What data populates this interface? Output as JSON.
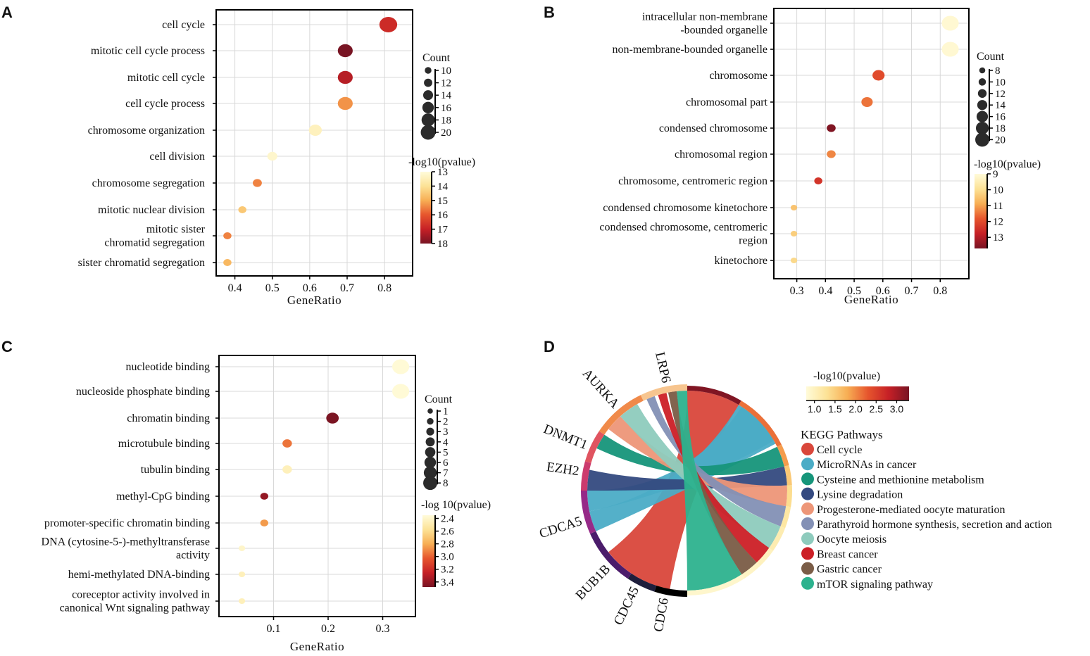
{
  "axis_label_gene_ratio": "GeneRatio",
  "chart_data": [
    {
      "panel": "A",
      "type": "scatter",
      "xlabel": "GeneRatio",
      "xlim": [
        0.35,
        0.875
      ],
      "xticks": [
        0.4,
        0.5,
        0.6,
        0.7,
        0.8
      ],
      "tick_labels": [
        "0.4",
        "0.5",
        "0.6",
        "0.7",
        "0.8"
      ],
      "size_title": "Count",
      "size_legend": [
        10,
        12,
        14,
        16,
        18,
        20
      ],
      "size_range": [
        10,
        20
      ],
      "color_title": "-log10(pvalue)",
      "color_ticks": [
        13,
        14,
        15,
        16,
        17,
        18
      ],
      "color_range": [
        13,
        18
      ],
      "terms": [
        {
          "label": [
            "cell cycle"
          ],
          "x": 0.81,
          "count": 20,
          "p": 16.8
        },
        {
          "label": [
            "mitotic cell cycle process"
          ],
          "x": 0.695,
          "count": 17,
          "p": 18
        },
        {
          "label": [
            "mitotic cell cycle"
          ],
          "x": 0.695,
          "count": 17,
          "p": 17.2
        },
        {
          "label": [
            "cell cycle process"
          ],
          "x": 0.695,
          "count": 17,
          "p": 15.3
        },
        {
          "label": [
            "chromosome organization"
          ],
          "x": 0.615,
          "count": 15,
          "p": 13.4
        },
        {
          "label": [
            "cell division"
          ],
          "x": 0.5,
          "count": 12,
          "p": 13.2
        },
        {
          "label": [
            "chromosome segregation"
          ],
          "x": 0.46,
          "count": 11,
          "p": 15.5
        },
        {
          "label": [
            "mitotic nuclear division"
          ],
          "x": 0.42,
          "count": 10,
          "p": 14.5
        },
        {
          "label": [
            "mitotic sister",
            "chromatid segregation"
          ],
          "x": 0.38,
          "count": 10,
          "p": 15.5
        },
        {
          "label": [
            "sister chromatid segregation"
          ],
          "x": 0.38,
          "count": 10,
          "p": 14.8
        }
      ]
    },
    {
      "panel": "B",
      "type": "scatter",
      "xlabel": "GeneRatio",
      "xlim": [
        0.22,
        0.9
      ],
      "xticks": [
        0.3,
        0.4,
        0.5,
        0.6,
        0.7,
        0.8
      ],
      "tick_labels": [
        "0.3",
        "0.4",
        "0.5",
        "0.6",
        "0.7",
        "0.8"
      ],
      "size_title": "Count",
      "size_legend": [
        8,
        10,
        12,
        14,
        16,
        18,
        20
      ],
      "size_range": [
        8,
        20
      ],
      "color_title": "-log10(pvalue)",
      "color_ticks": [
        9,
        10,
        11,
        12,
        13
      ],
      "color_range": [
        9,
        13.7
      ],
      "terms": [
        {
          "label": [
            "intracellular non-membrane",
            "-bounded organelle"
          ],
          "x": 0.835,
          "count": 20,
          "p": 9.1
        },
        {
          "label": [
            "non-membrane-bounded organelle"
          ],
          "x": 0.835,
          "count": 20,
          "p": 9.1
        },
        {
          "label": [
            "chromosome"
          ],
          "x": 0.585,
          "count": 14,
          "p": 12.0
        },
        {
          "label": [
            "chromosomal part"
          ],
          "x": 0.545,
          "count": 13,
          "p": 11.5
        },
        {
          "label": [
            "condensed chromosome"
          ],
          "x": 0.42,
          "count": 10,
          "p": 13.6
        },
        {
          "label": [
            "chromosomal region"
          ],
          "x": 0.42,
          "count": 10,
          "p": 11.3
        },
        {
          "label": [
            "chromosome, centromeric region"
          ],
          "x": 0.375,
          "count": 9,
          "p": 12.4
        },
        {
          "label": [
            "condensed chromosome kinetochore"
          ],
          "x": 0.29,
          "count": 7,
          "p": 10.5
        },
        {
          "label": [
            "condensed chromosome, centromeric",
            "region"
          ],
          "x": 0.29,
          "count": 7,
          "p": 10.3
        },
        {
          "label": [
            "kinetochore"
          ],
          "x": 0.29,
          "count": 7,
          "p": 10.1
        }
      ]
    },
    {
      "panel": "C",
      "type": "scatter",
      "xlabel": "GeneRatio",
      "xlim": [
        0.0,
        0.36
      ],
      "xticks": [
        0.1,
        0.2,
        0.3
      ],
      "tick_labels": [
        "0.1",
        "0.2",
        "0.3"
      ],
      "size_title": "Count",
      "size_legend": [
        1,
        2,
        3,
        4,
        5,
        6,
        7,
        8
      ],
      "size_range": [
        1,
        8
      ],
      "color_title": "-log 10(pvalue)",
      "color_ticks": [
        2.4,
        2.6,
        2.8,
        3.0,
        3.2,
        3.4
      ],
      "tick_text": [
        "2.4",
        "2.6",
        "2.8",
        "3.0",
        "3.2",
        "3.4"
      ],
      "color_range": [
        2.35,
        3.48
      ],
      "terms": [
        {
          "label": [
            "nucleotide binding"
          ],
          "x": 0.333,
          "count": 8,
          "p": 2.36
        },
        {
          "label": [
            "nucleoside phosphate binding"
          ],
          "x": 0.333,
          "count": 8,
          "p": 2.36
        },
        {
          "label": [
            "chromatin binding"
          ],
          "x": 0.208,
          "count": 5,
          "p": 3.47
        },
        {
          "label": [
            "microtubule binding"
          ],
          "x": 0.125,
          "count": 3,
          "p": 2.95
        },
        {
          "label": [
            "tubulin binding"
          ],
          "x": 0.125,
          "count": 3,
          "p": 2.45
        },
        {
          "label": [
            "methyl-CpG binding"
          ],
          "x": 0.083,
          "count": 2,
          "p": 3.4
        },
        {
          "label": [
            "promoter-specific chromatin binding"
          ],
          "x": 0.083,
          "count": 2,
          "p": 2.85
        },
        {
          "label": [
            "DNA (cytosine-5-)-methyltransferase",
            "activity"
          ],
          "x": 0.042,
          "count": 1,
          "p": 2.4
        },
        {
          "label": [
            "hemi-methylated DNA-binding"
          ],
          "x": 0.042,
          "count": 1,
          "p": 2.45
        },
        {
          "label": [
            "coreceptor activity involved in",
            "canonical Wnt signaling pathway"
          ],
          "x": 0.042,
          "count": 1,
          "p": 2.45
        }
      ]
    },
    {
      "panel": "D",
      "type": "chord",
      "color_title": "-log10(pvalue)",
      "color_ticks": [
        1.0,
        1.5,
        2.0,
        2.5,
        3.0
      ],
      "tick_text": [
        "1.0",
        "1.5",
        "2.0",
        "2.5",
        "3.0"
      ],
      "color_range": [
        0.8,
        3.3
      ],
      "legend_title": "KEGG Pathways",
      "genes": [
        "CDC6",
        "CDC45",
        "BUB1B",
        "CDCA5",
        "EZH2",
        "DNMT1",
        "AURKA",
        "LRP6"
      ],
      "gene_colors": [
        "#000000",
        "#1e1e3c",
        "#4b1c6b",
        "#962a88",
        "#cc3b6e",
        "#e05460",
        "#f08a4a",
        "#f7c58f"
      ],
      "pathways": [
        {
          "name": "Cell cycle",
          "color": "#d9473b",
          "p": 3.25
        },
        {
          "name": "MicroRNAs in cancer",
          "color": "#4bacc6",
          "p": 2.15
        },
        {
          "name": "Cysteine and methionine metabolism",
          "color": "#16957a",
          "p": 1.9
        },
        {
          "name": "Lysine degradation",
          "color": "#344a80",
          "p": 1.55
        },
        {
          "name": "Progesterone-mediated oocyte maturation",
          "color": "#ed9678",
          "p": 1.35
        },
        {
          "name": "Parathyroid hormone synthesis, secretion and action",
          "color": "#8390b5",
          "p": 1.2
        },
        {
          "name": "Oocyte meiosis",
          "color": "#8ecbbd",
          "p": 1.1
        },
        {
          "name": "Breast cancer",
          "color": "#cc1f26",
          "p": 1.0
        },
        {
          "name": "Gastric cancer",
          "color": "#7a5c46",
          "p": 0.95
        },
        {
          "name": "mTOR signaling pathway",
          "color": "#2db28e",
          "p": 0.9
        }
      ]
    }
  ]
}
